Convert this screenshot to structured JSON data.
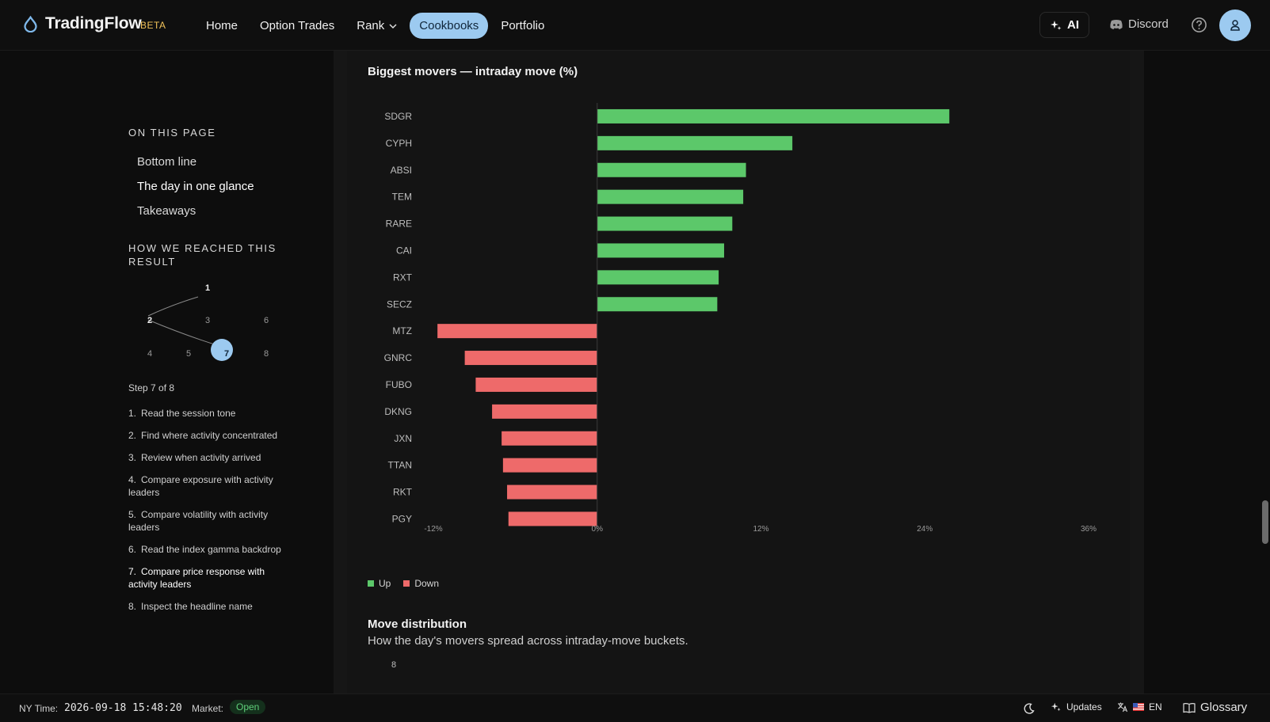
{
  "header": {
    "brand": "TradingFlow",
    "beta": "BETA",
    "nav": [
      "Home",
      "Option Trades",
      "Rank",
      "Cookbooks",
      "Portfolio"
    ],
    "active_nav": "Cookbooks",
    "ai_label": "AI",
    "discord_label": "Discord"
  },
  "sidebar": {
    "on_this_page_title": "ON THIS PAGE",
    "toc": [
      "Bottom line",
      "The day in one glance",
      "Takeaways"
    ],
    "how_title_line1": "HOW WE REACHED THIS",
    "how_title_line2": "RESULT",
    "graph_nodes": [
      "1",
      "2",
      "3",
      "6",
      "4",
      "5",
      "7",
      "8"
    ],
    "step_label": "Step 7 of 8",
    "steps": [
      {
        "num": "1.",
        "text": "Read the session tone"
      },
      {
        "num": "2.",
        "text": "Find where activity concentrated"
      },
      {
        "num": "3.",
        "text": "Review when activity arrived"
      },
      {
        "num": "4.",
        "text": "Compare exposure with activity leaders"
      },
      {
        "num": "5.",
        "text": "Compare volatility with activity leaders"
      },
      {
        "num": "6.",
        "text": "Read the index gamma backdrop"
      },
      {
        "num": "7.",
        "text": "Compare price response with activity leaders"
      },
      {
        "num": "8.",
        "text": "Inspect the headline name"
      }
    ]
  },
  "main": {
    "chart_title": "Biggest movers — intraday move (%)",
    "legend_up": "Up",
    "legend_down": "Down",
    "dist_title": "Move distribution",
    "dist_subtitle": "How the day's movers spread across intraday-move buckets.",
    "dist_first_tick": "8"
  },
  "chart_data": {
    "type": "bar",
    "orientation": "horizontal",
    "title": "Biggest movers — intraday move (%)",
    "categories": [
      "SDGR",
      "CYPH",
      "ABSI",
      "TEM",
      "RARE",
      "CAI",
      "RXT",
      "SECZ",
      "MTZ",
      "GNRC",
      "FUBO",
      "DKNG",
      "JXN",
      "TTAN",
      "RKT",
      "PGY"
    ],
    "values": [
      25.8,
      14.3,
      10.9,
      10.7,
      9.9,
      9.3,
      8.9,
      8.8,
      -11.7,
      -9.7,
      -8.9,
      -7.7,
      -7.0,
      -6.9,
      -6.6,
      -6.5
    ],
    "xlim": [
      -12,
      36
    ],
    "xticks": [
      "-12%",
      "0%",
      "12%",
      "24%",
      "36%"
    ],
    "xtick_values": [
      -12,
      0,
      12,
      24,
      36
    ],
    "series": [
      {
        "name": "Up",
        "color": "#5cc86a"
      },
      {
        "name": "Down",
        "color": "#ee6a6a"
      }
    ],
    "legend_position": "bottom-left",
    "grid": false
  },
  "footer": {
    "ny_time_label": "NY Time:",
    "ny_time": "2026-09-18 15:48:20",
    "market_label": "Market:",
    "market_status": "Open",
    "updates_label": "Updates",
    "lang_label": "EN",
    "glossary_label": "Glossary"
  },
  "colors": {
    "accent": "#9ccaf0",
    "up": "#5cc86a",
    "down": "#ee6a6a"
  }
}
